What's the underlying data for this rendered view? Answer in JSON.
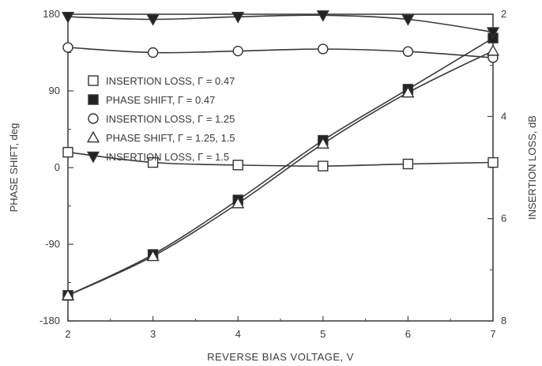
{
  "chart_data": {
    "type": "line",
    "xlabel": "REVERSE BIAS VOLTAGE, V",
    "ylabel": "PHASE SHIFT, deg",
    "y2label": "INSERTION LOSS, dB",
    "xlim": [
      2,
      7
    ],
    "ylim": [
      -180,
      180
    ],
    "y2lim": [
      2,
      8
    ],
    "y2_inverted": true,
    "x_ticks": [
      "2",
      "3",
      "4",
      "5",
      "6",
      "7"
    ],
    "y_ticks": [
      "180",
      "90",
      "0",
      "-90",
      "-180"
    ],
    "y2_ticks": [
      "2",
      "4",
      "6",
      "8"
    ],
    "grid": false,
    "legend_position": "upper-left",
    "series": [
      {
        "name": "INSERTION LOSS, Γ = 0.47",
        "axis": "right",
        "marker": "open-square",
        "x": [
          2,
          3,
          4,
          5,
          6,
          7
        ],
        "y": [
          4.7,
          4.9,
          4.95,
          4.97,
          4.93,
          4.9
        ]
      },
      {
        "name": "PHASE SHIFT, Γ = 0.47",
        "axis": "left",
        "marker": "filled-square",
        "x": [
          2,
          3,
          4,
          5,
          6,
          7
        ],
        "y": [
          -150,
          -102,
          -38,
          32,
          92,
          152
        ]
      },
      {
        "name": "INSERTION LOSS, Γ = 1.25",
        "axis": "right",
        "marker": "open-circle",
        "x": [
          2,
          3,
          4,
          5,
          6,
          7
        ],
        "y": [
          2.65,
          2.75,
          2.72,
          2.68,
          2.73,
          2.85
        ]
      },
      {
        "name": "PHASE SHIFT, Γ = 1.25, 1.5",
        "axis": "left",
        "marker": "open-triangle",
        "x": [
          2,
          3,
          4,
          5,
          6,
          7
        ],
        "y": [
          -150,
          -104,
          -42,
          28,
          88,
          137
        ]
      },
      {
        "name": "INSERTION LOSS, Γ = 1.5",
        "axis": "right",
        "marker": "filled-triangle-down",
        "x": [
          2,
          3,
          4,
          5,
          6,
          7
        ],
        "y": [
          2.05,
          2.1,
          2.05,
          2.02,
          2.1,
          2.35
        ]
      }
    ]
  }
}
